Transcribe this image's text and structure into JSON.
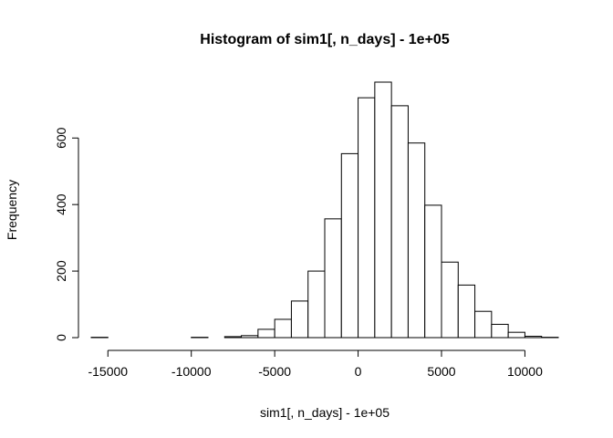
{
  "chart_data": {
    "type": "bar",
    "title": "Histogram of sim1[, n_days] - 1e+05",
    "xlabel": "sim1[, n_days] - 1e+05",
    "ylabel": "Frequency",
    "bin_width": 1000,
    "bins": [
      {
        "start": -16000,
        "end": -15000,
        "count": 1
      },
      {
        "start": -15000,
        "end": -14000,
        "count": 0
      },
      {
        "start": -14000,
        "end": -13000,
        "count": 0
      },
      {
        "start": -13000,
        "end": -12000,
        "count": 0
      },
      {
        "start": -12000,
        "end": -11000,
        "count": 0
      },
      {
        "start": -11000,
        "end": -10000,
        "count": 0
      },
      {
        "start": -10000,
        "end": -9000,
        "count": 1
      },
      {
        "start": -9000,
        "end": -8000,
        "count": 0
      },
      {
        "start": -8000,
        "end": -7000,
        "count": 3
      },
      {
        "start": -7000,
        "end": -6000,
        "count": 6
      },
      {
        "start": -6000,
        "end": -5000,
        "count": 25
      },
      {
        "start": -5000,
        "end": -4000,
        "count": 55
      },
      {
        "start": -4000,
        "end": -3000,
        "count": 110
      },
      {
        "start": -3000,
        "end": -2000,
        "count": 200
      },
      {
        "start": -2000,
        "end": -1000,
        "count": 357
      },
      {
        "start": -1000,
        "end": 0,
        "count": 553
      },
      {
        "start": 0,
        "end": 1000,
        "count": 721
      },
      {
        "start": 1000,
        "end": 2000,
        "count": 768
      },
      {
        "start": 2000,
        "end": 3000,
        "count": 697
      },
      {
        "start": 3000,
        "end": 4000,
        "count": 585
      },
      {
        "start": 4000,
        "end": 5000,
        "count": 398
      },
      {
        "start": 5000,
        "end": 6000,
        "count": 227
      },
      {
        "start": 6000,
        "end": 7000,
        "count": 158
      },
      {
        "start": 7000,
        "end": 8000,
        "count": 79
      },
      {
        "start": 8000,
        "end": 9000,
        "count": 40
      },
      {
        "start": 9000,
        "end": 10000,
        "count": 16
      },
      {
        "start": 10000,
        "end": 11000,
        "count": 4
      },
      {
        "start": 11000,
        "end": 12000,
        "count": 1
      }
    ],
    "xlim": [
      -16000,
      12000
    ],
    "ylim": [
      0,
      768
    ],
    "x_ticks": [
      -15000,
      -10000,
      -5000,
      0,
      5000,
      10000
    ],
    "x_tick_labels": [
      "-15000",
      "-10000",
      "-5000",
      "0",
      "5000",
      "10000"
    ],
    "y_ticks": [
      0,
      200,
      400,
      600
    ],
    "y_tick_labels": [
      "0",
      "200",
      "400",
      "600"
    ],
    "grid": false,
    "legend": "none"
  }
}
